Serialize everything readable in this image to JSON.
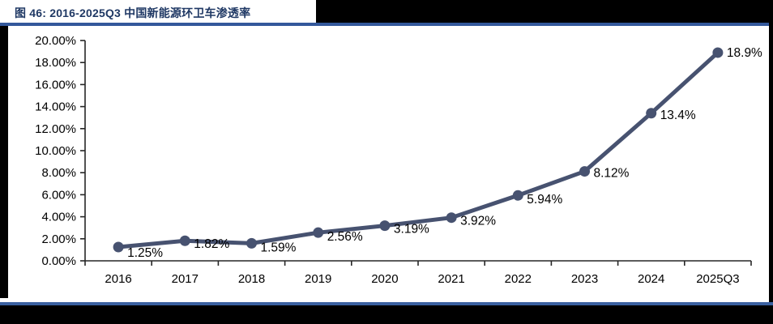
{
  "header": {
    "title": "图 46:  2016-2025Q3 中国新能源环卫车渗透率"
  },
  "colors": {
    "title_text": "#1F3864",
    "rule_top": "#33589B",
    "rule_bottom": "#3A60A0",
    "series_line": "#475270",
    "axis": "#262626",
    "tick_label_text": "#000000",
    "data_label_text": "#000000",
    "frame_black": "#000000",
    "background": "#ffffff"
  },
  "chart_data": {
    "type": "line",
    "title": "图 46:  2016-2025Q3 中国新能源环卫车渗透率",
    "categories": [
      "2016",
      "2017",
      "2018",
      "2019",
      "2020",
      "2021",
      "2022",
      "2023",
      "2024",
      "2025Q3"
    ],
    "values": [
      1.25,
      1.82,
      1.59,
      2.56,
      3.19,
      3.92,
      5.94,
      8.12,
      13.4,
      18.9
    ],
    "data_labels": [
      "1.25%",
      "1.82%",
      "1.59%",
      "2.56%",
      "3.19%",
      "3.92%",
      "5.94%",
      "8.12%",
      "13.4%",
      "18.9%"
    ],
    "xlabel": "",
    "ylabel": "",
    "ylim": [
      0,
      20
    ],
    "y_tick_step": 2,
    "y_tick_labels": [
      "0.00%",
      "2.00%",
      "4.00%",
      "6.00%",
      "8.00%",
      "10.00%",
      "12.00%",
      "14.00%",
      "16.00%",
      "18.00%",
      "20.00%"
    ],
    "grid": false,
    "legend": "none",
    "marker": "circle"
  }
}
